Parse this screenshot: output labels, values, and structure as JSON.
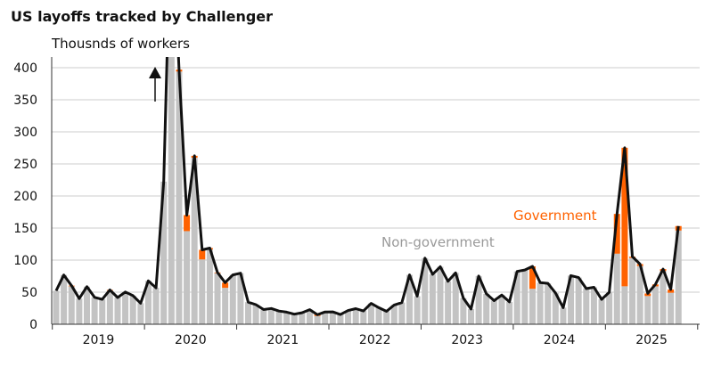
{
  "chart_data": {
    "type": "bar",
    "stacked": true,
    "title": "US layoffs tracked by Challenger",
    "subtitle": "Thousnds of workers",
    "ylim": [
      0,
      415
    ],
    "yticks": [
      0,
      50,
      100,
      150,
      200,
      250,
      300,
      350,
      400
    ],
    "grid": true,
    "x_start": "2019-01",
    "x_frequency": "monthly",
    "xtick_labels": [
      "2019",
      "2020",
      "2021",
      "2022",
      "2023",
      "2024",
      "2025"
    ],
    "series_labels": {
      "government": "Government",
      "non_government": "Non-government"
    },
    "colors": {
      "non_government": "#c3c3c3",
      "government": "#ff6200",
      "total_line": "#111111"
    },
    "off_scale_arrow": true,
    "total": [
      52.2,
      76.8,
      60.2,
      40.0,
      58.6,
      41.9,
      38.8,
      53.5,
      41.6,
      50.3,
      44.6,
      32.8,
      67.7,
      56.7,
      222.3,
      671.1,
      397.0,
      170.2,
      262.6,
      116.0,
      118.8,
      80.7,
      64.8,
      77.0,
      79.6,
      34.5,
      30.6,
      22.9,
      24.6,
      20.5,
      18.9,
      15.7,
      17.9,
      22.8,
      14.9,
      19.1,
      19.3,
      15.2,
      21.4,
      24.3,
      20.7,
      32.5,
      25.8,
      20.1,
      30.0,
      33.8,
      77.0,
      43.7,
      103.0,
      77.8,
      89.7,
      66.9,
      80.1,
      40.7,
      23.7,
      75.2,
      47.5,
      36.8,
      45.5,
      34.8,
      82.3,
      84.6,
      90.3,
      64.8,
      63.8,
      48.8,
      25.9,
      75.9,
      72.8,
      55.6,
      57.7,
      38.8,
      49.8,
      172.0,
      275.2,
      105.4,
      93.8,
      48.0,
      62.1,
      86.0,
      54.1,
      153.1
    ],
    "government": [
      0,
      0,
      1,
      0,
      0,
      0,
      0,
      1,
      0,
      0,
      0,
      0,
      0,
      0,
      0,
      0,
      3,
      25,
      3,
      15,
      2,
      1,
      8,
      0,
      0,
      0,
      0,
      0,
      0,
      0,
      0,
      0,
      0,
      0,
      2,
      0,
      0,
      0,
      0,
      0,
      0,
      0,
      0,
      0,
      0,
      0,
      0,
      0,
      0,
      0,
      0,
      0,
      0,
      0,
      0,
      0,
      0,
      0,
      0,
      0,
      0,
      0,
      35,
      0,
      0,
      0,
      0,
      0,
      0,
      0,
      0,
      0,
      0,
      62,
      216,
      2,
      3,
      4,
      3,
      3,
      5,
      7
    ]
  }
}
